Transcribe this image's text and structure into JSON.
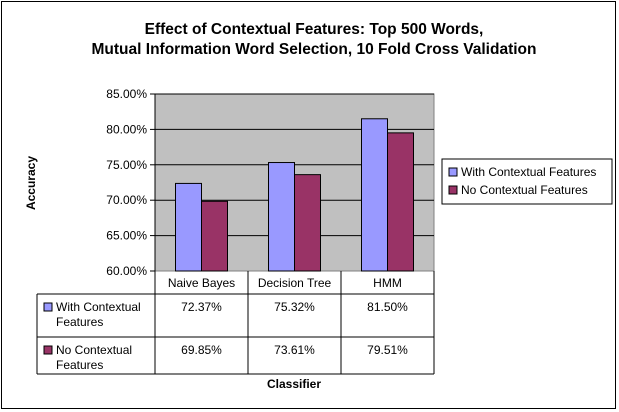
{
  "chart_data": {
    "type": "bar",
    "title_lines": [
      "Effect of Contextual Features: Top 500 Words,",
      "Mutual Information Word Selection, 10 Fold Cross Validation"
    ],
    "xlabel": "Classifier",
    "ylabel": "Accuracy",
    "categories": [
      "Naive Bayes",
      "Decision Tree",
      "HMM"
    ],
    "series": [
      {
        "name": "With Contextual Features",
        "table_label": [
          "With Contextual",
          "Features"
        ],
        "values": [
          72.37,
          75.32,
          81.5
        ],
        "labels": [
          "72.37%",
          "75.32%",
          "81.50%"
        ],
        "color": "#9999ff"
      },
      {
        "name": "No Contextual Features",
        "table_label": [
          "No Contextual",
          "Features"
        ],
        "values": [
          69.85,
          73.61,
          79.51
        ],
        "labels": [
          "69.85%",
          "73.61%",
          "79.51%"
        ],
        "color": "#993366"
      }
    ],
    "ylim": [
      60,
      85
    ],
    "yticks": [
      60,
      65,
      70,
      75,
      80,
      85
    ],
    "ytick_labels": [
      "60.00%",
      "65.00%",
      "70.00%",
      "75.00%",
      "80.00%",
      "85.00%"
    ],
    "grid": true,
    "plot_background": "#c0c0c0",
    "legend_position": "right",
    "data_table": true
  }
}
